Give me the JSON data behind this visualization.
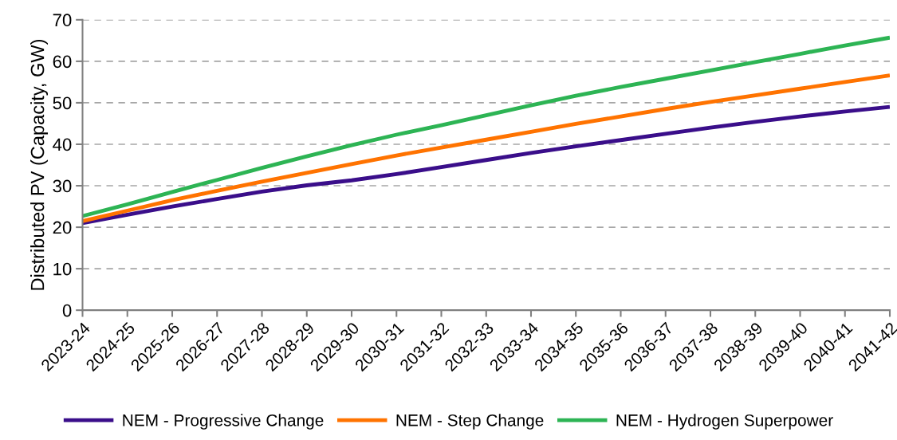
{
  "chart_data": {
    "type": "line",
    "ylabel": "Distributed PV (Capacity, GW)",
    "categories": [
      "2023-24",
      "2024-25",
      "2025-26",
      "2026-27",
      "2027-28",
      "2028-29",
      "2029-30",
      "2030-31",
      "2031-32",
      "2032-33",
      "2033-34",
      "2034-35",
      "2035-36",
      "2036-37",
      "2037-38",
      "2038-39",
      "2039-40",
      "2040-41",
      "2041-42"
    ],
    "series": [
      {
        "name": "NEM - Progressive Change",
        "color": "#3a0e8a",
        "values": [
          21,
          23,
          25,
          26.8,
          28.6,
          30.1,
          31.3,
          32.8,
          34.5,
          36.2,
          37.9,
          39.5,
          41,
          42.5,
          44,
          45.4,
          46.7,
          47.9,
          49
        ]
      },
      {
        "name": "NEM - Step Change",
        "color": "#ff7300",
        "values": [
          21.5,
          24,
          26.5,
          28.8,
          31,
          33.1,
          35.2,
          37.3,
          39.2,
          41.1,
          43,
          44.9,
          46.7,
          48.5,
          50.2,
          51.8,
          53.4,
          55,
          56.6
        ]
      },
      {
        "name": "NEM - Hydrogen Superpower",
        "color": "#2db454",
        "values": [
          22.7,
          25.5,
          28.5,
          31.4,
          34.3,
          37.1,
          39.8,
          42.3,
          44.6,
          47,
          49.4,
          51.7,
          53.8,
          55.8,
          57.8,
          59.8,
          61.8,
          63.8,
          65.7
        ]
      }
    ],
    "ylim": [
      0,
      70
    ],
    "yticks": [
      0,
      10,
      20,
      30,
      40,
      50,
      60,
      70
    ],
    "grid": "y",
    "legend": "bottom",
    "marker": "none",
    "line_style": "solid"
  }
}
